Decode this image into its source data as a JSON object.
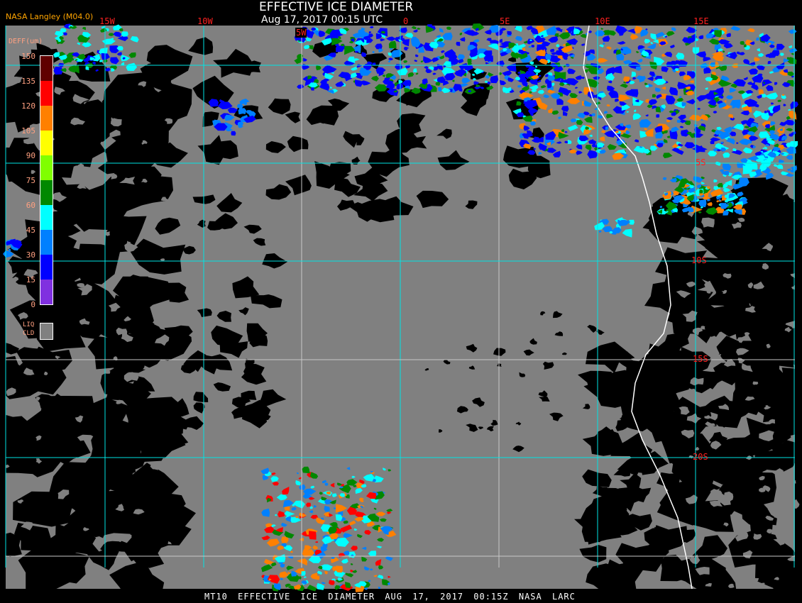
{
  "header": {
    "title": "EFFECTIVE ICE DIAMETER",
    "subtitle": "Aug 17, 2017 00:15 UTC",
    "brand": "NASA Langley (M04.0)"
  },
  "footer": {
    "parts": [
      "MT10",
      "EFFECTIVE ICE DIAMETER",
      "AUG 17, 2017 00:15Z",
      "NASA LARC"
    ]
  },
  "longitude_labels": [
    "15W",
    "10W",
    "5W",
    "0",
    "5E",
    "10E",
    "15E"
  ],
  "latitude_labels": [
    "5S",
    "10S",
    "15S",
    "20S"
  ],
  "legend": {
    "title": "DEFF(um)",
    "ticks": [
      "150",
      "135",
      "120",
      "105",
      "90",
      "75",
      "60",
      "45",
      "30",
      "15",
      "0"
    ],
    "colors": [
      "#600000",
      "#ff0000",
      "#ff8000",
      "#ffff00",
      "#80ff00",
      "#008800",
      "#00ffff",
      "#0080ff",
      "#0000ff",
      "#8030e0"
    ],
    "liquid_label_1": "LIQ",
    "liquid_label_2": "CLD",
    "liquid_color": "#808080"
  },
  "colors": {
    "grid_primary": "#00e5e5",
    "grid_secondary": "#c8c8c8",
    "clear_sky": "#000000",
    "coastline": "#ffffff"
  }
}
